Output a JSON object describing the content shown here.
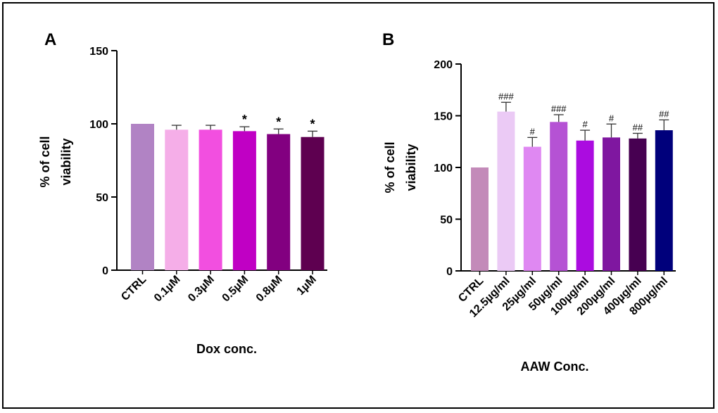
{
  "chart_data": [
    {
      "type": "bar",
      "panel_label": "A",
      "categories": [
        "CTRL",
        "0.1µM",
        "0.3µM",
        "0.5µM",
        "0.8µM",
        "1µM"
      ],
      "values": [
        100,
        96,
        96,
        95,
        93,
        91
      ],
      "errors": [
        0,
        3,
        3,
        3,
        3.5,
        4
      ],
      "annotations": [
        "",
        "",
        "",
        "*",
        "*",
        "*"
      ],
      "colors": [
        "#b183c4",
        "#f5aee8",
        "#f24fe0",
        "#c000c4",
        "#820080",
        "#5e0050"
      ],
      "ylabel_lines": [
        "% of cell",
        "viability"
      ],
      "xlabel": "Dox conc.",
      "ylim": [
        0,
        150
      ],
      "yticks": [
        0,
        50,
        100,
        150
      ],
      "ytick_labels": [
        "0",
        "50",
        "100",
        "150"
      ]
    },
    {
      "type": "bar",
      "panel_label": "B",
      "categories": [
        "CTRL",
        "12.5µg/ml",
        "25µg/ml",
        "50µg/ml",
        "100µg/ml",
        "200µg/ml",
        "400µg/ml",
        "800µg/ml"
      ],
      "values": [
        100,
        154,
        120,
        144,
        126,
        129,
        128,
        136
      ],
      "errors": [
        0,
        9,
        9,
        7,
        10,
        13,
        5,
        10
      ],
      "annotations": [
        "",
        "###",
        "#",
        "###",
        "#",
        "#",
        "##",
        "##"
      ],
      "colors": [
        "#c38ab9",
        "#ebcaf5",
        "#df88f2",
        "#b552d4",
        "#ab0ce0",
        "#7f17a0",
        "#470051",
        "#00007b"
      ],
      "ylabel_lines": [
        "% of cell",
        "viability"
      ],
      "xlabel": "AAW Conc.",
      "ylim": [
        0,
        200
      ],
      "yticks": [
        0,
        50,
        100,
        150,
        200
      ],
      "ytick_labels": [
        "0",
        "50",
        "100",
        "150",
        "200"
      ]
    }
  ]
}
